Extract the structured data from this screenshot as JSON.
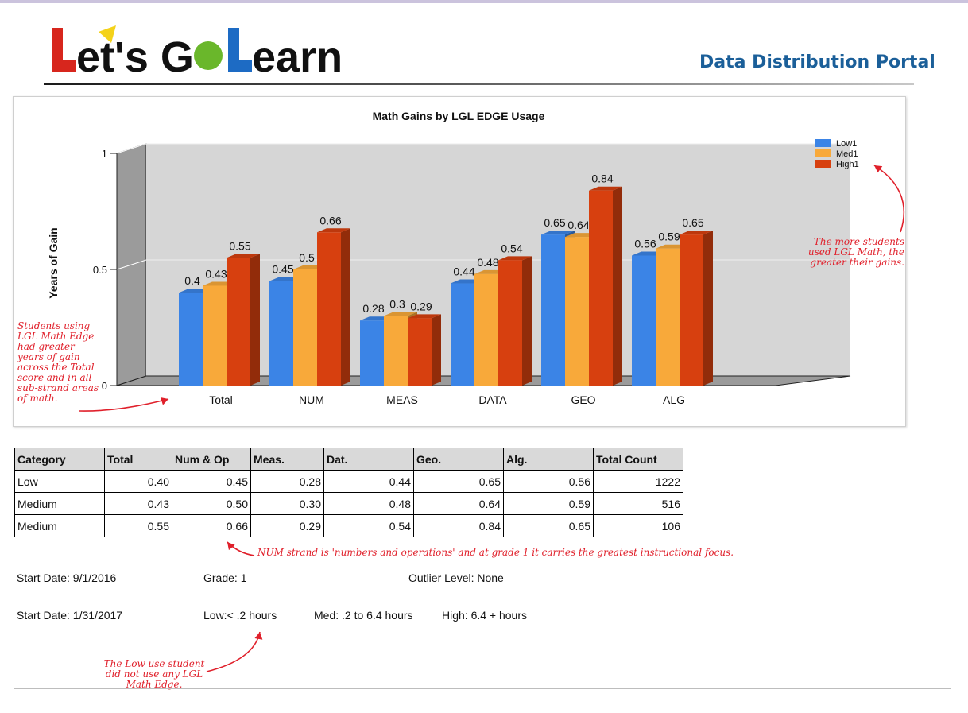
{
  "header": {
    "logo_text": "Let's Go Learn",
    "portal_title": "Data Distribution Portal"
  },
  "colors": {
    "low": "#3b84e6",
    "medium": "#f8a93a",
    "high": "#d7400f",
    "annotation": "#e0202b",
    "portal_title": "#1b5f99"
  },
  "chart_data": {
    "type": "bar",
    "title": "Math Gains by LGL EDGE Usage",
    "ylabel": "Years of Gain",
    "xlabel": "",
    "ylim": [
      0,
      1
    ],
    "yticks": [
      0,
      0.5,
      1
    ],
    "categories": [
      "Total",
      "NUM",
      "MEAS",
      "DATA",
      "GEO",
      "ALG"
    ],
    "series": [
      {
        "name": "Low1",
        "color": "#3b84e6",
        "values": [
          0.4,
          0.45,
          0.28,
          0.44,
          0.65,
          0.56
        ]
      },
      {
        "name": "Med1",
        "color": "#f8a93a",
        "values": [
          0.43,
          0.5,
          0.3,
          0.48,
          0.64,
          0.59
        ]
      },
      {
        "name": "High1",
        "color": "#d7400f",
        "values": [
          0.55,
          0.66,
          0.29,
          0.54,
          0.84,
          0.65
        ]
      }
    ],
    "grid": true,
    "legend_position": "top-right",
    "style": "3d"
  },
  "annotations": {
    "left": "Students using LGL Math Edge had greater years of gain across the Total score and in all sub-strand areas of math.",
    "right": "The more students used LGL Math, the greater their gains.",
    "num": "NUM strand is 'numbers and operations' and at grade 1 it carries the greatest instructional focus.",
    "low": "The Low use student did not use any LGL Math Edge."
  },
  "table": {
    "headers": [
      "Category",
      "Total",
      "Num & Op",
      "Meas.",
      "Dat.",
      "Geo.",
      "Alg.",
      "Total Count"
    ],
    "rows": [
      [
        "Low",
        "0.40",
        "0.45",
        "0.28",
        "0.44",
        "0.65",
        "0.56",
        "1222"
      ],
      [
        "Medium",
        "0.43",
        "0.50",
        "0.30",
        "0.48",
        "0.64",
        "0.59",
        "516"
      ],
      [
        "Medium",
        "0.55",
        "0.66",
        "0.29",
        "0.54",
        "0.84",
        "0.65",
        "106"
      ]
    ]
  },
  "info": {
    "start_date": "Start Date: 9/1/2016",
    "grade": "Grade: 1",
    "outlier": "Outlier Level: None",
    "end_date": "Start Date: 1/31/2017",
    "low": "Low:< .2 hours",
    "med": "Med: .2 to 6.4 hours",
    "high": "High: 6.4 + hours"
  }
}
